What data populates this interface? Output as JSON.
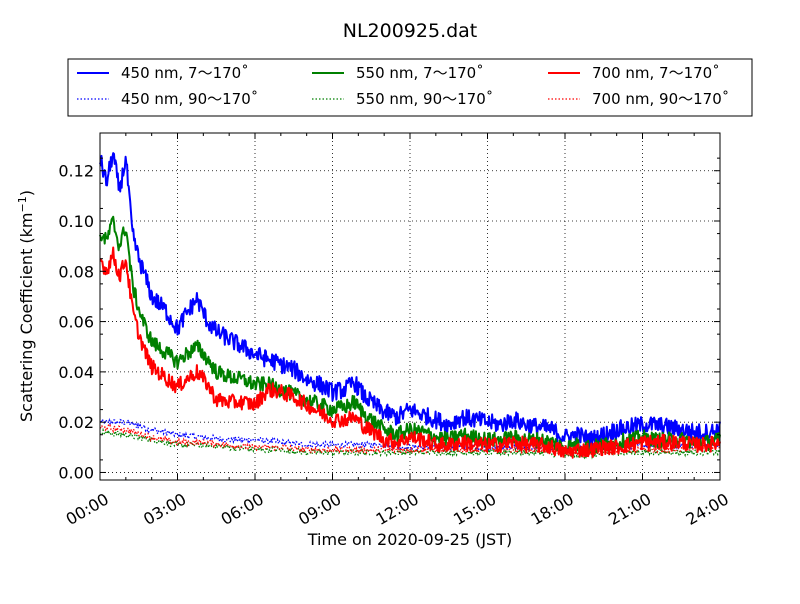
{
  "chart_data": {
    "type": "line",
    "title": "NL200925.dat",
    "xlabel": "Time on 2020-09-25 (JST)",
    "ylabel": "Scattering Coefficient (km",
    "ylabel_sup": "−1",
    "ylabel_close": ")",
    "xlim": [
      "00:00",
      "24:00"
    ],
    "ylim": [
      -0.003,
      0.135
    ],
    "grid": true,
    "legend_position": "top-outside",
    "x_ticks": [
      "00:00",
      "03:00",
      "06:00",
      "09:00",
      "12:00",
      "15:00",
      "18:00",
      "21:00",
      "24:00"
    ],
    "y_ticks": [
      "0.00",
      "0.02",
      "0.04",
      "0.06",
      "0.08",
      "0.10",
      "0.12"
    ],
    "series": [
      {
        "name": "450 nm, 7～170˚",
        "color": "#0000ff",
        "style": "solid",
        "x": [
          "00:00",
          "00:15",
          "00:30",
          "00:45",
          "01:00",
          "01:15",
          "01:30",
          "01:45",
          "02:00",
          "02:30",
          "03:00",
          "03:20",
          "03:45",
          "04:10",
          "04:30",
          "05:00",
          "05:30",
          "06:00",
          "06:30",
          "07:00",
          "07:30",
          "08:00",
          "08:30",
          "09:00",
          "09:30",
          "09:50",
          "10:15",
          "10:45",
          "11:00",
          "11:30",
          "12:00",
          "12:30",
          "13:00",
          "13:30",
          "14:00",
          "14:30",
          "15:00",
          "15:30",
          "16:00",
          "16:30",
          "17:00",
          "17:30",
          "18:00",
          "18:30",
          "19:00",
          "19:30",
          "20:00",
          "20:30",
          "21:00",
          "21:30",
          "22:00",
          "22:30",
          "23:00",
          "23:30",
          "24:00"
        ],
        "y": [
          0.125,
          0.115,
          0.127,
          0.112,
          0.125,
          0.095,
          0.085,
          0.078,
          0.07,
          0.065,
          0.057,
          0.063,
          0.069,
          0.06,
          0.056,
          0.053,
          0.05,
          0.047,
          0.045,
          0.043,
          0.041,
          0.037,
          0.035,
          0.032,
          0.033,
          0.036,
          0.03,
          0.026,
          0.024,
          0.022,
          0.025,
          0.023,
          0.021,
          0.019,
          0.022,
          0.021,
          0.02,
          0.019,
          0.021,
          0.019,
          0.018,
          0.017,
          0.014,
          0.015,
          0.013,
          0.015,
          0.017,
          0.018,
          0.019,
          0.019,
          0.018,
          0.017,
          0.016,
          0.016,
          0.017
        ],
        "noise": 0.0035
      },
      {
        "name": "550 nm, 7～170˚",
        "color": "#008000",
        "style": "solid",
        "x": [
          "00:00",
          "00:15",
          "00:30",
          "00:45",
          "01:00",
          "01:15",
          "01:30",
          "01:45",
          "02:00",
          "02:30",
          "03:00",
          "03:20",
          "03:45",
          "04:10",
          "04:30",
          "05:00",
          "05:30",
          "06:00",
          "06:30",
          "07:00",
          "07:30",
          "08:00",
          "08:30",
          "09:00",
          "09:30",
          "09:50",
          "10:15",
          "10:45",
          "11:00",
          "11:30",
          "12:00",
          "12:30",
          "13:00",
          "13:30",
          "14:00",
          "14:30",
          "15:00",
          "15:30",
          "16:00",
          "16:30",
          "17:00",
          "17:30",
          "18:00",
          "18:30",
          "19:00",
          "19:30",
          "20:00",
          "20:30",
          "21:00",
          "21:30",
          "22:00",
          "22:30",
          "23:00",
          "23:30",
          "24:00"
        ],
        "y": [
          0.095,
          0.092,
          0.1,
          0.09,
          0.098,
          0.075,
          0.065,
          0.058,
          0.052,
          0.048,
          0.044,
          0.047,
          0.05,
          0.045,
          0.04,
          0.038,
          0.037,
          0.035,
          0.035,
          0.033,
          0.031,
          0.029,
          0.027,
          0.025,
          0.026,
          0.028,
          0.023,
          0.019,
          0.017,
          0.015,
          0.017,
          0.016,
          0.014,
          0.013,
          0.015,
          0.014,
          0.013,
          0.013,
          0.014,
          0.013,
          0.013,
          0.012,
          0.01,
          0.011,
          0.01,
          0.011,
          0.012,
          0.013,
          0.014,
          0.013,
          0.013,
          0.013,
          0.012,
          0.012,
          0.013
        ],
        "noise": 0.003
      },
      {
        "name": "700 nm, 7～170˚",
        "color": "#ff0000",
        "style": "solid",
        "x": [
          "00:00",
          "00:15",
          "00:30",
          "00:45",
          "01:00",
          "01:15",
          "01:30",
          "01:45",
          "02:00",
          "02:30",
          "03:00",
          "03:20",
          "03:45",
          "04:10",
          "04:30",
          "05:00",
          "05:30",
          "06:00",
          "06:30",
          "07:00",
          "07:30",
          "08:00",
          "08:30",
          "09:00",
          "09:30",
          "09:50",
          "10:15",
          "10:45",
          "11:00",
          "11:30",
          "12:00",
          "12:30",
          "13:00",
          "13:30",
          "14:00",
          "14:30",
          "15:00",
          "15:30",
          "16:00",
          "16:30",
          "17:00",
          "17:30",
          "18:00",
          "18:30",
          "19:00",
          "19:30",
          "20:00",
          "20:30",
          "21:00",
          "21:30",
          "22:00",
          "22:30",
          "23:00",
          "23:30",
          "24:00"
        ],
        "y": [
          0.085,
          0.08,
          0.087,
          0.078,
          0.085,
          0.065,
          0.055,
          0.048,
          0.042,
          0.038,
          0.034,
          0.037,
          0.04,
          0.035,
          0.029,
          0.028,
          0.028,
          0.027,
          0.033,
          0.032,
          0.03,
          0.027,
          0.024,
          0.021,
          0.021,
          0.022,
          0.018,
          0.015,
          0.013,
          0.012,
          0.014,
          0.013,
          0.011,
          0.011,
          0.012,
          0.011,
          0.011,
          0.011,
          0.012,
          0.011,
          0.011,
          0.01,
          0.008,
          0.009,
          0.009,
          0.01,
          0.01,
          0.011,
          0.012,
          0.012,
          0.012,
          0.012,
          0.011,
          0.011,
          0.012
        ],
        "noise": 0.003
      },
      {
        "name": "450 nm, 90～170˚",
        "color": "#0000ff",
        "style": "dotted",
        "x": [
          "00:00",
          "01:00",
          "02:00",
          "03:00",
          "04:00",
          "05:00",
          "06:00",
          "07:00",
          "08:00",
          "09:00",
          "10:00",
          "11:00",
          "12:00",
          "13:00",
          "14:00",
          "15:00",
          "16:00",
          "17:00",
          "18:00",
          "19:00",
          "20:00",
          "21:00",
          "22:00",
          "23:00",
          "24:00"
        ],
        "y": [
          0.02,
          0.02,
          0.017,
          0.015,
          0.014,
          0.013,
          0.013,
          0.012,
          0.011,
          0.011,
          0.011,
          0.011,
          0.01,
          0.01,
          0.01,
          0.01,
          0.01,
          0.01,
          0.009,
          0.009,
          0.01,
          0.011,
          0.011,
          0.011,
          0.011
        ],
        "noise": 0.0012
      },
      {
        "name": "550 nm, 90～170˚",
        "color": "#008000",
        "style": "dotted",
        "x": [
          "00:00",
          "01:00",
          "02:00",
          "03:00",
          "04:00",
          "05:00",
          "06:00",
          "07:00",
          "08:00",
          "09:00",
          "10:00",
          "11:00",
          "12:00",
          "13:00",
          "14:00",
          "15:00",
          "16:00",
          "17:00",
          "18:00",
          "19:00",
          "20:00",
          "21:00",
          "22:00",
          "23:00",
          "24:00"
        ],
        "y": [
          0.016,
          0.015,
          0.013,
          0.011,
          0.011,
          0.01,
          0.009,
          0.009,
          0.008,
          0.008,
          0.008,
          0.008,
          0.008,
          0.008,
          0.008,
          0.008,
          0.008,
          0.008,
          0.007,
          0.007,
          0.008,
          0.008,
          0.008,
          0.008,
          0.008
        ],
        "noise": 0.0012
      },
      {
        "name": "700 nm, 90～170˚",
        "color": "#ff0000",
        "style": "dotted",
        "x": [
          "00:00",
          "01:00",
          "02:00",
          "03:00",
          "04:00",
          "05:00",
          "06:00",
          "07:00",
          "08:00",
          "09:00",
          "10:00",
          "11:00",
          "12:00",
          "13:00",
          "14:00",
          "15:00",
          "16:00",
          "17:00",
          "18:00",
          "19:00",
          "20:00",
          "21:00",
          "22:00",
          "23:00",
          "24:00"
        ],
        "y": [
          0.018,
          0.017,
          0.014,
          0.012,
          0.012,
          0.011,
          0.01,
          0.01,
          0.009,
          0.009,
          0.009,
          0.009,
          0.009,
          0.009,
          0.009,
          0.009,
          0.009,
          0.009,
          0.008,
          0.008,
          0.009,
          0.009,
          0.009,
          0.01,
          0.01
        ],
        "noise": 0.0012
      }
    ]
  }
}
